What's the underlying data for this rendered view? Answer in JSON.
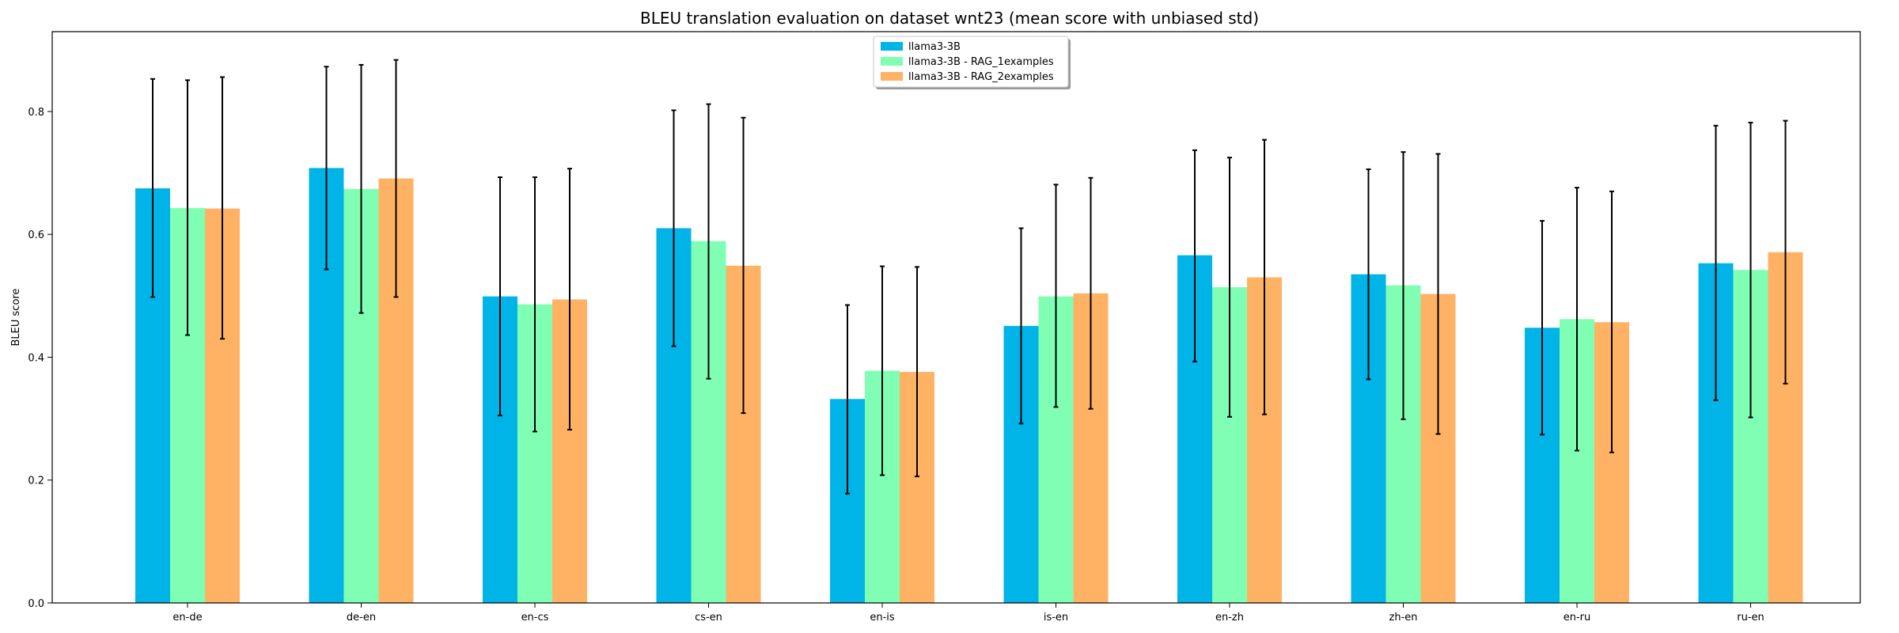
{
  "chart_data": {
    "type": "bar",
    "title": "BLEU translation evaluation on dataset wnt23 (mean score with unbiased std)",
    "xlabel": "",
    "ylabel": "BLEU score",
    "ylim": [
      0,
      0.93
    ],
    "yticks": [
      0.0,
      0.2,
      0.4,
      0.6,
      0.8
    ],
    "ytick_labels": [
      "0.0",
      "0.2",
      "0.4",
      "0.6",
      "0.8"
    ],
    "grid": false,
    "legend_position": "top-center",
    "categories": [
      "en-de",
      "de-en",
      "en-cs",
      "cs-en",
      "en-is",
      "is-en",
      "en-zh",
      "zh-en",
      "en-ru",
      "ru-en"
    ],
    "series": [
      {
        "name": "llama3-3B",
        "color": "#00b4e8",
        "values": [
          0.675,
          0.708,
          0.499,
          0.61,
          0.332,
          0.451,
          0.566,
          0.535,
          0.448,
          0.553
        ],
        "err_low": [
          0.498,
          0.543,
          0.305,
          0.418,
          0.178,
          0.292,
          0.393,
          0.364,
          0.274,
          0.33
        ],
        "err_high": [
          0.853,
          0.873,
          0.693,
          0.802,
          0.485,
          0.61,
          0.737,
          0.706,
          0.622,
          0.777
        ]
      },
      {
        "name": "llama3-3B - RAG_1examples",
        "color": "#80ffb4",
        "values": [
          0.643,
          0.674,
          0.486,
          0.589,
          0.378,
          0.499,
          0.514,
          0.517,
          0.462,
          0.542
        ],
        "err_low": [
          0.436,
          0.472,
          0.279,
          0.365,
          0.208,
          0.319,
          0.303,
          0.299,
          0.248,
          0.302
        ],
        "err_high": [
          0.851,
          0.876,
          0.693,
          0.812,
          0.548,
          0.681,
          0.725,
          0.734,
          0.676,
          0.782
        ]
      },
      {
        "name": "llama3-3B - RAG_2examples",
        "color": "#ffb264",
        "values": [
          0.642,
          0.691,
          0.494,
          0.549,
          0.376,
          0.504,
          0.53,
          0.503,
          0.457,
          0.571
        ],
        "err_low": [
          0.43,
          0.498,
          0.282,
          0.309,
          0.206,
          0.316,
          0.307,
          0.275,
          0.245,
          0.357
        ],
        "err_high": [
          0.856,
          0.884,
          0.707,
          0.79,
          0.547,
          0.692,
          0.754,
          0.731,
          0.67,
          0.785
        ]
      }
    ]
  }
}
